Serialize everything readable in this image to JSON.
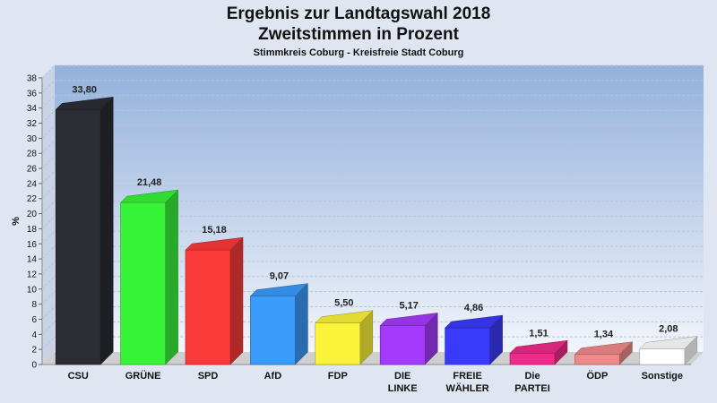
{
  "chart_data": {
    "type": "bar",
    "title": "Ergebnis zur Landtagswahl 2018",
    "subtitle_line": "Zweitstimmen in Prozent",
    "subtitle": "Stimmkreis Coburg - Kreisfreie Stadt Coburg",
    "xlabel": "",
    "ylabel": "%",
    "ylim": [
      0,
      38
    ],
    "yticks": [
      0,
      2,
      4,
      6,
      8,
      10,
      12,
      14,
      16,
      18,
      20,
      22,
      24,
      26,
      28,
      30,
      32,
      34,
      36,
      38
    ],
    "grid": true,
    "categories": [
      "CSU",
      "GRÜNE",
      "SPD",
      "AfD",
      "FDP",
      "DIE LINKE",
      "FREIE WÄHLER",
      "Die PARTEI",
      "ÖDP",
      "Sonstige"
    ],
    "category_lines": [
      [
        "CSU"
      ],
      [
        "GRÜNE"
      ],
      [
        "SPD"
      ],
      [
        "AfD"
      ],
      [
        "FDP"
      ],
      [
        "DIE",
        "LINKE"
      ],
      [
        "FREIE",
        "WÄHLER"
      ],
      [
        "Die",
        "PARTEI"
      ],
      [
        "ÖDP"
      ],
      [
        "Sonstige"
      ]
    ],
    "values": [
      33.8,
      21.48,
      15.18,
      9.07,
      5.5,
      5.17,
      4.86,
      1.51,
      1.34,
      2.08
    ],
    "value_labels": [
      "33,80",
      "21,48",
      "15,18",
      "9,07",
      "5,50",
      "5,17",
      "4,86",
      "1,51",
      "1,34",
      "2,08"
    ],
    "colors": [
      "#2b2d33",
      "#37f337",
      "#fb3a3a",
      "#3a9bfb",
      "#fbf33a",
      "#a43afb",
      "#3a3afb",
      "#ee2b8a",
      "#f08a8a",
      "#ffffff"
    ]
  }
}
